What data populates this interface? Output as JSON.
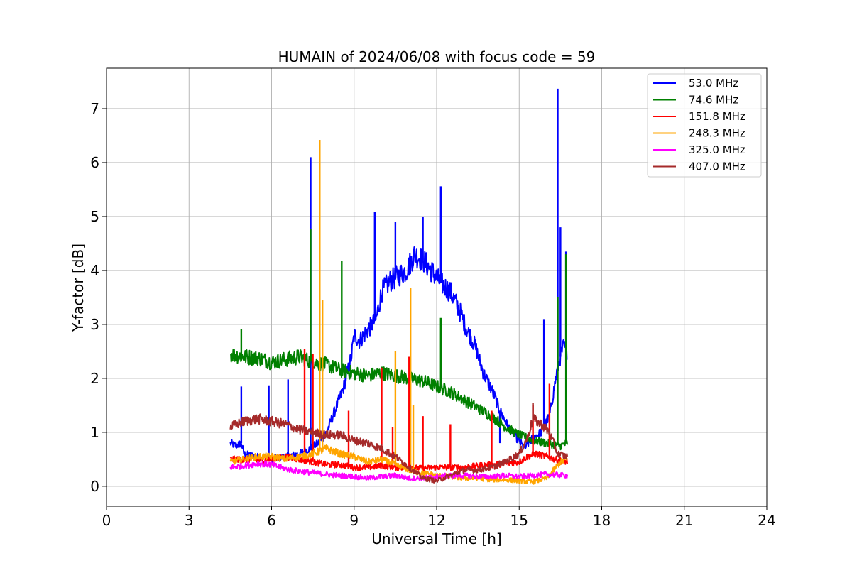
{
  "chart_data": {
    "type": "line",
    "title": "HUMAIN of 2024/06/08 with focus code = 59",
    "xlabel": "Universal Time [h]",
    "ylabel": "Y-factor [dB]",
    "xlim": [
      0,
      24
    ],
    "ylim": [
      -0.37,
      7.75
    ],
    "xticks": [
      0,
      3,
      6,
      9,
      12,
      15,
      18,
      21,
      24
    ],
    "yticks": [
      0,
      1,
      2,
      3,
      4,
      5,
      6,
      7
    ],
    "grid": true,
    "legend_position": "top-right",
    "series": [
      {
        "name": " 53.0 MHz",
        "color": "#0000ff",
        "points": [
          [
            4.5,
            0.8
          ],
          [
            4.7,
            0.75
          ],
          [
            4.9,
            0.8
          ],
          [
            5.0,
            0.6
          ],
          [
            5.5,
            0.55
          ],
          [
            6.0,
            0.5
          ],
          [
            6.5,
            0.55
          ],
          [
            7.0,
            0.6
          ],
          [
            7.4,
            0.7
          ],
          [
            7.7,
            0.8
          ],
          [
            8.0,
            1.0
          ],
          [
            8.3,
            1.4
          ],
          [
            8.6,
            1.8
          ],
          [
            8.9,
            2.4
          ],
          [
            9.0,
            2.8
          ],
          [
            9.2,
            2.7
          ],
          [
            9.5,
            2.9
          ],
          [
            9.8,
            3.1
          ],
          [
            10.0,
            3.6
          ],
          [
            10.3,
            3.8
          ],
          [
            10.6,
            3.9
          ],
          [
            10.9,
            4.0
          ],
          [
            11.2,
            4.3
          ],
          [
            11.5,
            4.2
          ],
          [
            11.8,
            4.0
          ],
          [
            12.1,
            3.8
          ],
          [
            12.5,
            3.6
          ],
          [
            12.8,
            3.3
          ],
          [
            13.1,
            2.9
          ],
          [
            13.4,
            2.6
          ],
          [
            13.7,
            2.1
          ],
          [
            14.0,
            1.8
          ],
          [
            14.3,
            1.4
          ],
          [
            14.6,
            1.1
          ],
          [
            14.9,
            0.9
          ],
          [
            15.2,
            0.7
          ],
          [
            15.5,
            0.9
          ],
          [
            15.8,
            1.0
          ],
          [
            16.1,
            1.3
          ],
          [
            16.4,
            2.2
          ],
          [
            16.6,
            2.6
          ],
          [
            16.75,
            2.5
          ]
        ],
        "spikes": [
          [
            4.9,
            1.85
          ],
          [
            5.9,
            1.87
          ],
          [
            6.6,
            1.98
          ],
          [
            7.42,
            6.1
          ],
          [
            9.75,
            5.08
          ],
          [
            10.5,
            4.9
          ],
          [
            11.5,
            5.0
          ],
          [
            12.15,
            5.56
          ],
          [
            14.3,
            0.8
          ],
          [
            15.9,
            3.1
          ],
          [
            16.4,
            7.37
          ],
          [
            16.5,
            4.8
          ],
          [
            16.7,
            4.35
          ]
        ]
      },
      {
        "name": " 74.6 MHz",
        "color": "#008000",
        "points": [
          [
            4.5,
            2.45
          ],
          [
            5.0,
            2.4
          ],
          [
            5.5,
            2.38
          ],
          [
            6.0,
            2.3
          ],
          [
            6.5,
            2.35
          ],
          [
            7.0,
            2.4
          ],
          [
            7.5,
            2.3
          ],
          [
            8.0,
            2.25
          ],
          [
            8.5,
            2.15
          ],
          [
            9.0,
            2.1
          ],
          [
            9.5,
            2.05
          ],
          [
            10.0,
            2.1
          ],
          [
            10.5,
            2.05
          ],
          [
            11.0,
            2.0
          ],
          [
            11.5,
            1.95
          ],
          [
            12.0,
            1.85
          ],
          [
            12.5,
            1.75
          ],
          [
            13.0,
            1.6
          ],
          [
            13.5,
            1.45
          ],
          [
            14.0,
            1.3
          ],
          [
            14.5,
            1.1
          ],
          [
            15.0,
            0.95
          ],
          [
            15.5,
            0.85
          ],
          [
            16.0,
            0.8
          ],
          [
            16.5,
            0.75
          ],
          [
            16.75,
            0.8
          ]
        ],
        "spikes": [
          [
            4.9,
            2.92
          ],
          [
            7.42,
            4.77
          ],
          [
            8.55,
            4.17
          ],
          [
            12.15,
            3.12
          ],
          [
            16.4,
            3.5
          ],
          [
            16.7,
            4.3
          ]
        ]
      },
      {
        "name": "151.8 MHz",
        "color": "#ff0000",
        "points": [
          [
            4.5,
            0.5
          ],
          [
            5.0,
            0.5
          ],
          [
            5.5,
            0.48
          ],
          [
            6.0,
            0.5
          ],
          [
            6.5,
            0.55
          ],
          [
            7.0,
            0.5
          ],
          [
            7.5,
            0.45
          ],
          [
            8.0,
            0.4
          ],
          [
            8.5,
            0.4
          ],
          [
            9.0,
            0.35
          ],
          [
            9.5,
            0.35
          ],
          [
            10.0,
            0.38
          ],
          [
            10.5,
            0.35
          ],
          [
            11.0,
            0.35
          ],
          [
            11.5,
            0.33
          ],
          [
            12.0,
            0.35
          ],
          [
            12.5,
            0.35
          ],
          [
            13.0,
            0.35
          ],
          [
            13.5,
            0.38
          ],
          [
            14.0,
            0.4
          ],
          [
            14.5,
            0.42
          ],
          [
            15.0,
            0.45
          ],
          [
            15.3,
            0.55
          ],
          [
            15.6,
            0.6
          ],
          [
            16.0,
            0.55
          ],
          [
            16.3,
            0.5
          ],
          [
            16.75,
            0.45
          ]
        ],
        "spikes": [
          [
            7.2,
            2.55
          ],
          [
            7.5,
            2.45
          ],
          [
            8.8,
            1.4
          ],
          [
            10.0,
            2.2
          ],
          [
            10.4,
            1.1
          ],
          [
            11.0,
            2.4
          ],
          [
            11.5,
            1.3
          ],
          [
            12.5,
            1.15
          ],
          [
            14.0,
            1.4
          ],
          [
            15.5,
            1.5
          ],
          [
            16.1,
            1.9
          ]
        ]
      },
      {
        "name": "248.3 MHz",
        "color": "#ffa500",
        "points": [
          [
            4.5,
            0.45
          ],
          [
            5.0,
            0.5
          ],
          [
            5.5,
            0.55
          ],
          [
            6.0,
            0.55
          ],
          [
            6.5,
            0.5
          ],
          [
            7.0,
            0.55
          ],
          [
            7.5,
            0.6
          ],
          [
            8.0,
            0.7
          ],
          [
            8.5,
            0.6
          ],
          [
            9.0,
            0.55
          ],
          [
            9.5,
            0.45
          ],
          [
            10.0,
            0.5
          ],
          [
            10.5,
            0.4
          ],
          [
            11.0,
            0.3
          ],
          [
            11.5,
            0.25
          ],
          [
            12.0,
            0.2
          ],
          [
            12.5,
            0.18
          ],
          [
            13.0,
            0.15
          ],
          [
            13.5,
            0.15
          ],
          [
            14.0,
            0.12
          ],
          [
            14.5,
            0.12
          ],
          [
            15.0,
            0.1
          ],
          [
            15.5,
            0.08
          ],
          [
            16.0,
            0.15
          ],
          [
            16.5,
            0.45
          ],
          [
            16.75,
            0.5
          ]
        ],
        "spikes": [
          [
            7.75,
            6.42
          ],
          [
            7.85,
            3.45
          ],
          [
            10.5,
            2.5
          ],
          [
            11.05,
            3.68
          ],
          [
            11.15,
            1.5
          ]
        ]
      },
      {
        "name": "325.0 MHz",
        "color": "#ff00ff",
        "points": [
          [
            4.5,
            0.35
          ],
          [
            5.0,
            0.38
          ],
          [
            5.5,
            0.42
          ],
          [
            6.0,
            0.4
          ],
          [
            6.5,
            0.32
          ],
          [
            7.0,
            0.28
          ],
          [
            7.5,
            0.25
          ],
          [
            8.0,
            0.22
          ],
          [
            8.5,
            0.2
          ],
          [
            9.0,
            0.18
          ],
          [
            9.5,
            0.15
          ],
          [
            10.0,
            0.18
          ],
          [
            10.5,
            0.2
          ],
          [
            11.0,
            0.15
          ],
          [
            11.5,
            0.15
          ],
          [
            12.0,
            0.18
          ],
          [
            12.5,
            0.2
          ],
          [
            13.0,
            0.2
          ],
          [
            13.5,
            0.18
          ],
          [
            14.0,
            0.18
          ],
          [
            14.5,
            0.2
          ],
          [
            15.0,
            0.18
          ],
          [
            15.5,
            0.2
          ],
          [
            16.0,
            0.22
          ],
          [
            16.75,
            0.2
          ]
        ],
        "spikes": []
      },
      {
        "name": "407.0 MHz",
        "color": "#a52a2a",
        "points": [
          [
            4.5,
            1.1
          ],
          [
            5.0,
            1.2
          ],
          [
            5.5,
            1.25
          ],
          [
            6.0,
            1.2
          ],
          [
            6.5,
            1.15
          ],
          [
            7.0,
            1.05
          ],
          [
            7.5,
            1.0
          ],
          [
            8.0,
            0.95
          ],
          [
            8.5,
            0.95
          ],
          [
            9.0,
            0.85
          ],
          [
            9.5,
            0.8
          ],
          [
            10.0,
            0.7
          ],
          [
            10.5,
            0.55
          ],
          [
            11.0,
            0.35
          ],
          [
            11.5,
            0.15
          ],
          [
            12.0,
            0.1
          ],
          [
            12.5,
            0.2
          ],
          [
            13.0,
            0.3
          ],
          [
            13.5,
            0.3
          ],
          [
            14.0,
            0.35
          ],
          [
            14.5,
            0.45
          ],
          [
            15.0,
            0.6
          ],
          [
            15.3,
            0.9
          ],
          [
            15.5,
            1.25
          ],
          [
            15.8,
            1.15
          ],
          [
            16.1,
            1.0
          ],
          [
            16.4,
            0.6
          ],
          [
            16.75,
            0.55
          ]
        ],
        "spikes": [
          [
            15.5,
            1.55
          ]
        ]
      }
    ]
  }
}
